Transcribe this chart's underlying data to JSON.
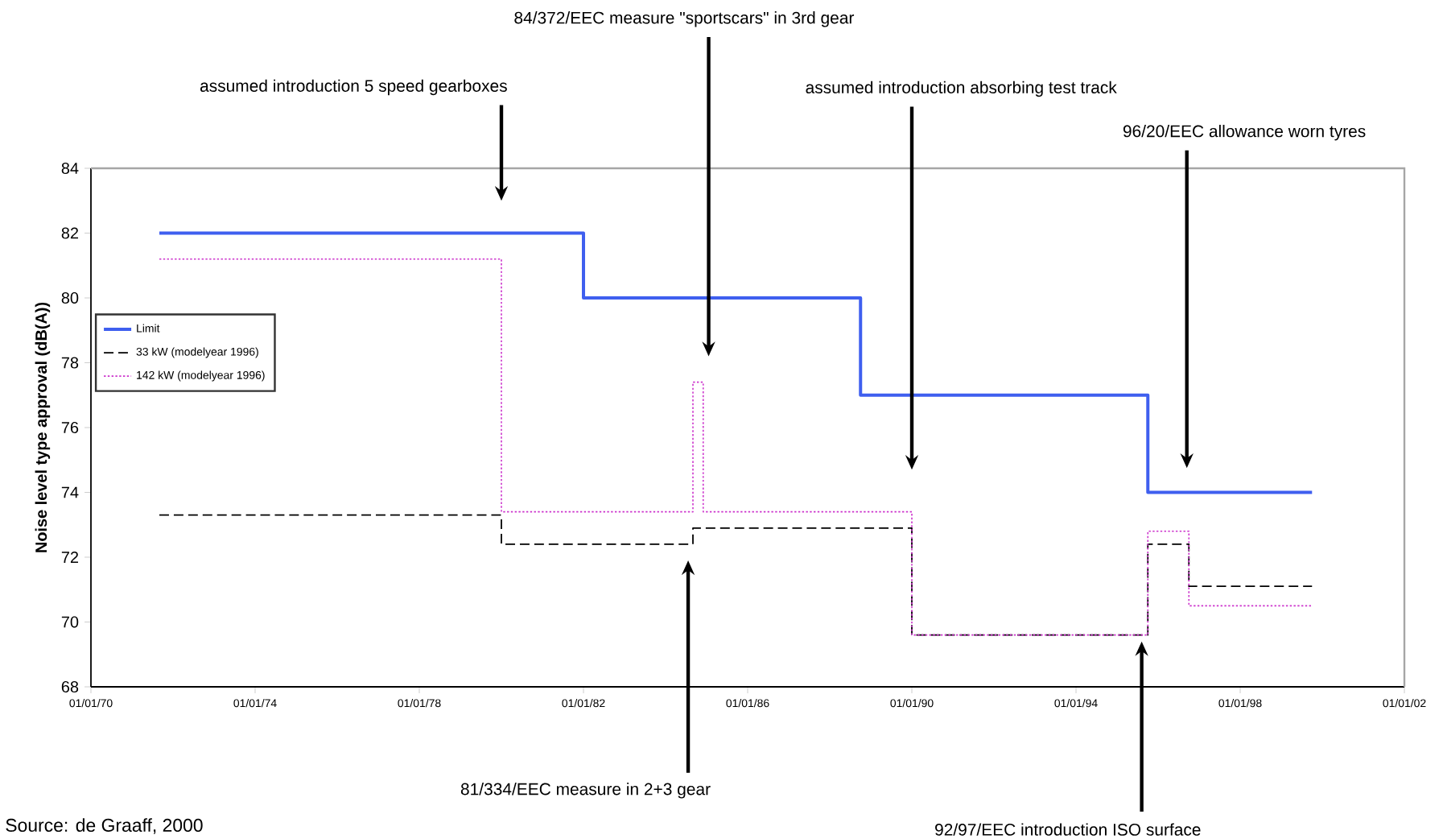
{
  "chart_data": {
    "type": "step",
    "ylabel": "Noise level type approval (dB(A))",
    "xlim": [
      "1970-01-01",
      "2002-01-01"
    ],
    "xticks": [
      {
        "value": "1970-01-01",
        "label": "01/01/70"
      },
      {
        "value": "1974-01-01",
        "label": "01/01/74"
      },
      {
        "value": "1978-01-01",
        "label": "01/01/78"
      },
      {
        "value": "1982-01-01",
        "label": "01/01/82"
      },
      {
        "value": "1986-01-01",
        "label": "01/01/86"
      },
      {
        "value": "1990-01-01",
        "label": "01/01/90"
      },
      {
        "value": "1994-01-01",
        "label": "01/01/94"
      },
      {
        "value": "1998-01-01",
        "label": "01/01/98"
      },
      {
        "value": "2002-01-01",
        "label": "01/01/02"
      }
    ],
    "ylim": [
      68,
      84
    ],
    "yticks": [
      68,
      70,
      72,
      74,
      76,
      78,
      80,
      82,
      84
    ],
    "grid": false,
    "legend": "left",
    "series": [
      {
        "name": "Limit",
        "color": "#3f5fef",
        "line_style": "solid",
        "x": [
          "1971-09",
          "1982-01",
          "1988-10",
          "1995-10",
          "1999-10"
        ],
        "values": [
          82,
          80,
          77,
          74,
          74
        ]
      },
      {
        "name": "33 kW (modelyear 1996)",
        "color": "#000000",
        "line_style": "dashed",
        "x": [
          "1971-09",
          "1980-01",
          "1984-09",
          "1990-01",
          "1995-10",
          "1996-10",
          "1999-10"
        ],
        "values": [
          73.3,
          72.4,
          72.9,
          69.6,
          72.4,
          71.1,
          71.1
        ]
      },
      {
        "name": "142 kW (modelyear 1996)",
        "color": "#cc33cc",
        "line_style": "dotted",
        "x": [
          "1971-09",
          "1980-01",
          "1984-09",
          "1984-12",
          "1990-01",
          "1995-10",
          "1996-10",
          "1999-10"
        ],
        "values": [
          81.2,
          73.4,
          77.4,
          73.4,
          69.6,
          72.8,
          70.5,
          70.5
        ]
      }
    ],
    "annotations": [
      "assumed introduction 5 speed gearboxes",
      "84/372/EEC measure \"sportscars\" in 3rd gear",
      "assumed introduction absorbing test track",
      "96/20/EEC allowance worn tyres",
      "81/334/EEC measure in 2+3 gear",
      "92/97/EEC introduction ISO surface",
      "Source: de Graaff, 2000"
    ]
  }
}
